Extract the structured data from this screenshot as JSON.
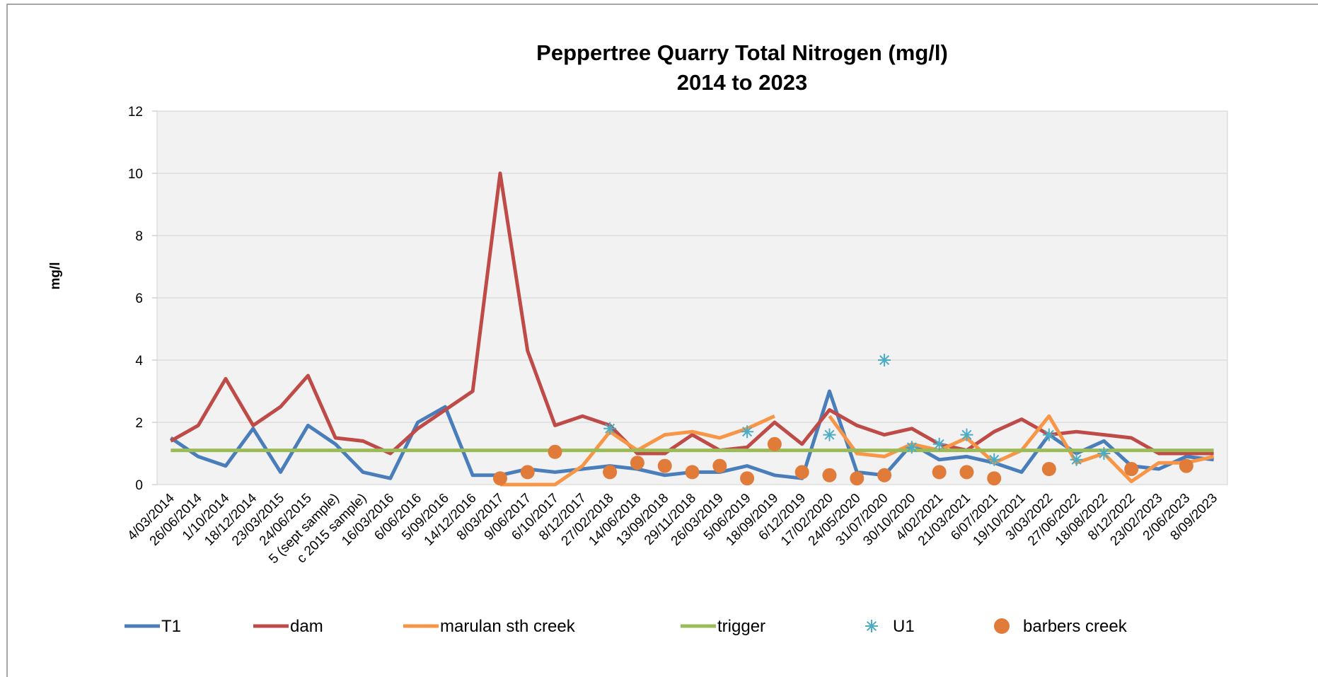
{
  "chart_data": {
    "type": "line",
    "title": "Peppertree Quarry Total Nitrogen  (mg/l)",
    "subtitle": "2014 to 2023",
    "y_label": "mg/l",
    "categories": [
      "4/03/2014",
      "26/06/2014",
      "1/10/2014",
      "18/12/2014",
      "23/03/2015",
      "24/06/2015",
      "5 (sept sample)",
      "c 2015 sample)",
      "16/03/2016",
      "6/06/2016",
      "5/09/2016",
      "14/12/2016",
      "8/03/2017",
      "9/06/2017",
      "6/10/2017",
      "8/12/2017",
      "27/02/2018",
      "14/06/2018",
      "13/09/2018",
      "29/11/2018",
      "26/03/2019",
      "5/06/2019",
      "18/09/2019",
      "6/12/2019",
      "17/02/2020",
      "24/05/2020",
      "31/07/2020",
      "30/10/2020",
      "4/02/2021",
      "21/03/2021",
      "6/07/2021",
      "19/10/2021",
      "3/03/2022",
      "27/06/2022",
      "18/08/2022",
      "8/12/2022",
      "23/02/2023",
      "2/06/2023",
      "8/09/2023"
    ],
    "series": [
      {
        "name": "T1",
        "color": "#4a7ebb",
        "marker": "none",
        "values": [
          1.5,
          0.9,
          0.6,
          1.8,
          0.4,
          1.9,
          1.3,
          0.4,
          0.2,
          2.0,
          2.5,
          0.3,
          0.3,
          0.5,
          0.4,
          0.5,
          0.6,
          0.5,
          0.3,
          0.4,
          0.4,
          0.6,
          0.3,
          0.2,
          3.0,
          0.4,
          0.3,
          1.3,
          0.8,
          0.9,
          0.7,
          0.4,
          1.6,
          1.0,
          1.4,
          0.6,
          0.5,
          0.9,
          0.8
        ]
      },
      {
        "name": "dam",
        "color": "#be4b48",
        "marker": "none",
        "values": [
          1.4,
          1.9,
          3.4,
          1.9,
          2.5,
          3.5,
          1.5,
          1.4,
          1.0,
          1.8,
          2.4,
          3.0,
          10,
          4.3,
          1.9,
          2.2,
          1.9,
          1.0,
          1.0,
          1.6,
          1.1,
          1.2,
          2.0,
          1.3,
          2.4,
          1.9,
          1.6,
          1.8,
          1.3,
          1.1,
          1.7,
          2.1,
          1.6,
          1.7,
          1.6,
          1.5,
          1.0,
          1.0,
          1.0
        ]
      },
      {
        "name": "marulan sth creek",
        "color": "#f79646",
        "marker": "none",
        "values": [
          null,
          null,
          null,
          null,
          null,
          null,
          null,
          null,
          null,
          null,
          null,
          null,
          0,
          0,
          0,
          0.6,
          1.7,
          1.1,
          1.6,
          1.7,
          1.5,
          1.8,
          2.2,
          null,
          2.2,
          1.0,
          0.9,
          1.3,
          1.1,
          1.5,
          0.7,
          1.1,
          2.2,
          0.7,
          1.0,
          0.1,
          0.7,
          0.7,
          0.9
        ]
      },
      {
        "name": "trigger",
        "color": "#9bbb59",
        "marker": "none",
        "values": [
          1.1,
          1.1,
          1.1,
          1.1,
          1.1,
          1.1,
          1.1,
          1.1,
          1.1,
          1.1,
          1.1,
          1.1,
          1.1,
          1.1,
          1.1,
          1.1,
          1.1,
          1.1,
          1.1,
          1.1,
          1.1,
          1.1,
          1.1,
          1.1,
          1.1,
          1.1,
          1.1,
          1.1,
          1.1,
          1.1,
          1.1,
          1.1,
          1.1,
          1.1,
          1.1,
          1.1,
          1.1,
          1.1,
          1.1
        ]
      },
      {
        "name": "U1",
        "color": "#4bacc6",
        "marker": "star",
        "values": [
          null,
          null,
          null,
          null,
          null,
          null,
          null,
          null,
          null,
          null,
          null,
          null,
          null,
          null,
          null,
          null,
          1.8,
          null,
          null,
          null,
          null,
          1.7,
          null,
          null,
          1.6,
          null,
          4.0,
          1.2,
          1.3,
          1.6,
          0.8,
          null,
          1.6,
          0.8,
          1.0,
          null,
          null,
          null,
          null
        ]
      },
      {
        "name": "barbers creek",
        "color": "#e07b39",
        "marker": "circle",
        "values": [
          null,
          null,
          null,
          null,
          null,
          null,
          null,
          null,
          null,
          null,
          null,
          null,
          0.2,
          0.4,
          1.05,
          null,
          0.4,
          0.7,
          0.6,
          0.4,
          0.6,
          0.2,
          1.3,
          0.4,
          0.3,
          0.2,
          0.3,
          null,
          0.4,
          0.4,
          0.2,
          null,
          0.5,
          null,
          null,
          0.5,
          null,
          0.6,
          null
        ]
      }
    ],
    "ylim": [
      0,
      12
    ],
    "yticks": [
      0,
      2,
      4,
      6,
      8,
      10,
      12
    ],
    "grid": true,
    "legend": "bottom"
  }
}
